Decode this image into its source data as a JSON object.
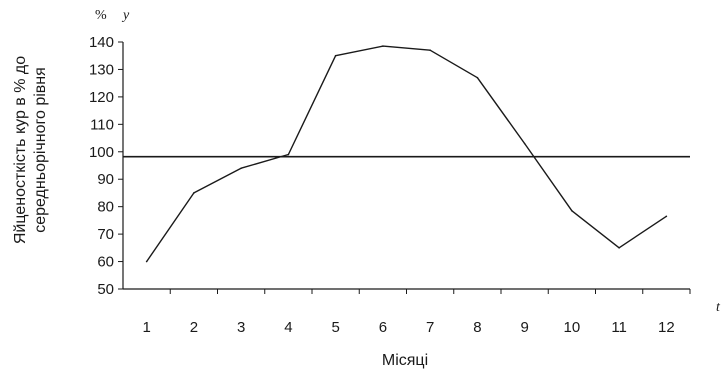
{
  "chart_data": {
    "type": "line",
    "title": "",
    "xlabel": "Місяці",
    "ylabel_lines": [
      "Яйценосткість кур в % до",
      "середньорічного рівня"
    ],
    "y_unit_label": "%",
    "y_var_label": "y",
    "x_var_label": "t",
    "categories": [
      "1",
      "2",
      "3",
      "4",
      "5",
      "6",
      "7",
      "8",
      "9",
      "10",
      "11",
      "12"
    ],
    "ylim": [
      50,
      140
    ],
    "yticks": [
      50,
      60,
      70,
      80,
      90,
      100,
      110,
      120,
      130,
      140
    ],
    "grid": false,
    "legend": "none",
    "series": [
      {
        "values": [
          60,
          85,
          94,
          99,
          135,
          138.5,
          137,
          127,
          103,
          78.5,
          65,
          76.5
        ],
        "color": "#1a1a1a"
      }
    ],
    "reference_line": {
      "value": 98.2,
      "color": "#1a1a1a"
    }
  }
}
